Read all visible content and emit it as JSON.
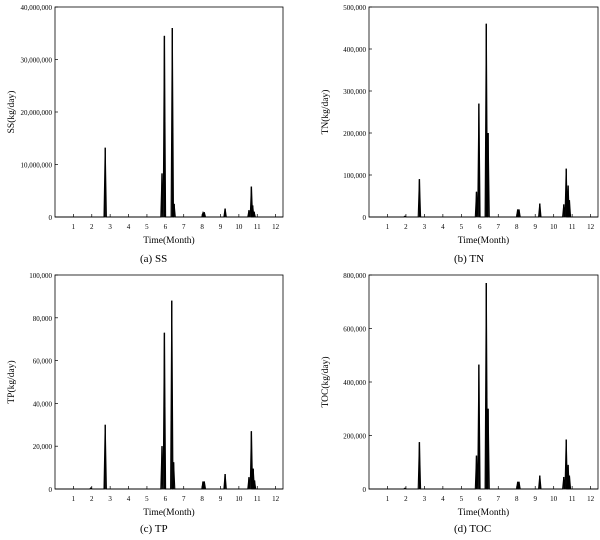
{
  "chart_data": [
    {
      "type": "line",
      "ylabel": "SS(kg/day)",
      "xlabel": "Time(Month)",
      "caption": "(a)  SS",
      "xlim": [
        0,
        12.4
      ],
      "ylim": [
        0,
        40000000
      ],
      "xticks": [
        1,
        2,
        3,
        4,
        5,
        6,
        7,
        8,
        9,
        10,
        11,
        12
      ],
      "yticks": [
        0,
        10000000,
        20000000,
        30000000,
        40000000
      ],
      "ytick_labels": [
        "0",
        "10,000,000",
        "20,000,000",
        "30,000,000",
        "40,000,000"
      ],
      "peaks": [
        {
          "x": 2.73,
          "y": 13200000
        },
        {
          "x": 5.82,
          "y": 8300000
        },
        {
          "x": 5.95,
          "y": 34500000
        },
        {
          "x": 6.38,
          "y": 36000000
        },
        {
          "x": 6.48,
          "y": 2500000
        },
        {
          "x": 8.05,
          "y": 800000
        },
        {
          "x": 8.12,
          "y": 900000
        },
        {
          "x": 9.25,
          "y": 1600000
        },
        {
          "x": 10.55,
          "y": 1300000
        },
        {
          "x": 10.68,
          "y": 5800000
        },
        {
          "x": 10.75,
          "y": 2200000
        },
        {
          "x": 10.83,
          "y": 1000000
        }
      ]
    },
    {
      "type": "line",
      "ylabel": "TN(kg/day)",
      "xlabel": "Time(Month)",
      "caption": "(b)  TN",
      "xlim": [
        0,
        12.4
      ],
      "ylim": [
        0,
        500000
      ],
      "xticks": [
        1,
        2,
        3,
        4,
        5,
        6,
        7,
        8,
        9,
        10,
        11,
        12
      ],
      "yticks": [
        0,
        100000,
        200000,
        300000,
        400000,
        500000
      ],
      "ytick_labels": [
        "0",
        "100,000",
        "200,000",
        "300,000",
        "400,000",
        "500,000"
      ],
      "peaks": [
        {
          "x": 1.95,
          "y": 2000
        },
        {
          "x": 2.73,
          "y": 90000
        },
        {
          "x": 5.82,
          "y": 60000
        },
        {
          "x": 5.95,
          "y": 270000
        },
        {
          "x": 6.35,
          "y": 460000
        },
        {
          "x": 6.45,
          "y": 200000
        },
        {
          "x": 8.05,
          "y": 18000
        },
        {
          "x": 8.12,
          "y": 18000
        },
        {
          "x": 9.25,
          "y": 32000
        },
        {
          "x": 10.55,
          "y": 30000
        },
        {
          "x": 10.68,
          "y": 115000
        },
        {
          "x": 10.78,
          "y": 75000
        },
        {
          "x": 10.85,
          "y": 40000
        }
      ]
    },
    {
      "type": "line",
      "ylabel": "TP(kg/day)",
      "xlabel": "Time(Month)",
      "caption": "(c)  TP",
      "xlim": [
        0,
        12.4
      ],
      "ylim": [
        0,
        100000
      ],
      "xticks": [
        1,
        2,
        3,
        4,
        5,
        6,
        7,
        8,
        9,
        10,
        11,
        12
      ],
      "yticks": [
        0,
        20000,
        40000,
        60000,
        80000,
        100000
      ],
      "ytick_labels": [
        "0",
        "20,000",
        "40,000",
        "60,000",
        "80,000",
        "100,000"
      ],
      "peaks": [
        {
          "x": 1.95,
          "y": 500
        },
        {
          "x": 2.73,
          "y": 30000
        },
        {
          "x": 5.82,
          "y": 20000
        },
        {
          "x": 5.95,
          "y": 73000
        },
        {
          "x": 6.35,
          "y": 88000
        },
        {
          "x": 6.45,
          "y": 12500
        },
        {
          "x": 8.05,
          "y": 3500
        },
        {
          "x": 8.12,
          "y": 3500
        },
        {
          "x": 9.25,
          "y": 7000
        },
        {
          "x": 10.55,
          "y": 5500
        },
        {
          "x": 10.68,
          "y": 27000
        },
        {
          "x": 10.78,
          "y": 9500
        },
        {
          "x": 10.85,
          "y": 4000
        }
      ]
    },
    {
      "type": "line",
      "ylabel": "TOC(kg/day)",
      "xlabel": "Time(Month)",
      "caption": "(d)  TOC",
      "xlim": [
        0,
        12.4
      ],
      "ylim": [
        0,
        800000
      ],
      "xticks": [
        1,
        2,
        3,
        4,
        5,
        6,
        7,
        8,
        9,
        10,
        11,
        12
      ],
      "yticks": [
        0,
        200000,
        400000,
        600000,
        800000
      ],
      "ytick_labels": [
        "0",
        "200,000",
        "400,000",
        "600,000",
        "800,000"
      ],
      "peaks": [
        {
          "x": 1.95,
          "y": 3000
        },
        {
          "x": 2.73,
          "y": 175000
        },
        {
          "x": 5.82,
          "y": 125000
        },
        {
          "x": 5.95,
          "y": 465000
        },
        {
          "x": 6.35,
          "y": 770000
        },
        {
          "x": 6.45,
          "y": 300000
        },
        {
          "x": 8.05,
          "y": 27000
        },
        {
          "x": 8.12,
          "y": 27000
        },
        {
          "x": 9.25,
          "y": 50000
        },
        {
          "x": 10.55,
          "y": 45000
        },
        {
          "x": 10.68,
          "y": 185000
        },
        {
          "x": 10.78,
          "y": 90000
        },
        {
          "x": 10.85,
          "y": 50000
        }
      ]
    }
  ]
}
